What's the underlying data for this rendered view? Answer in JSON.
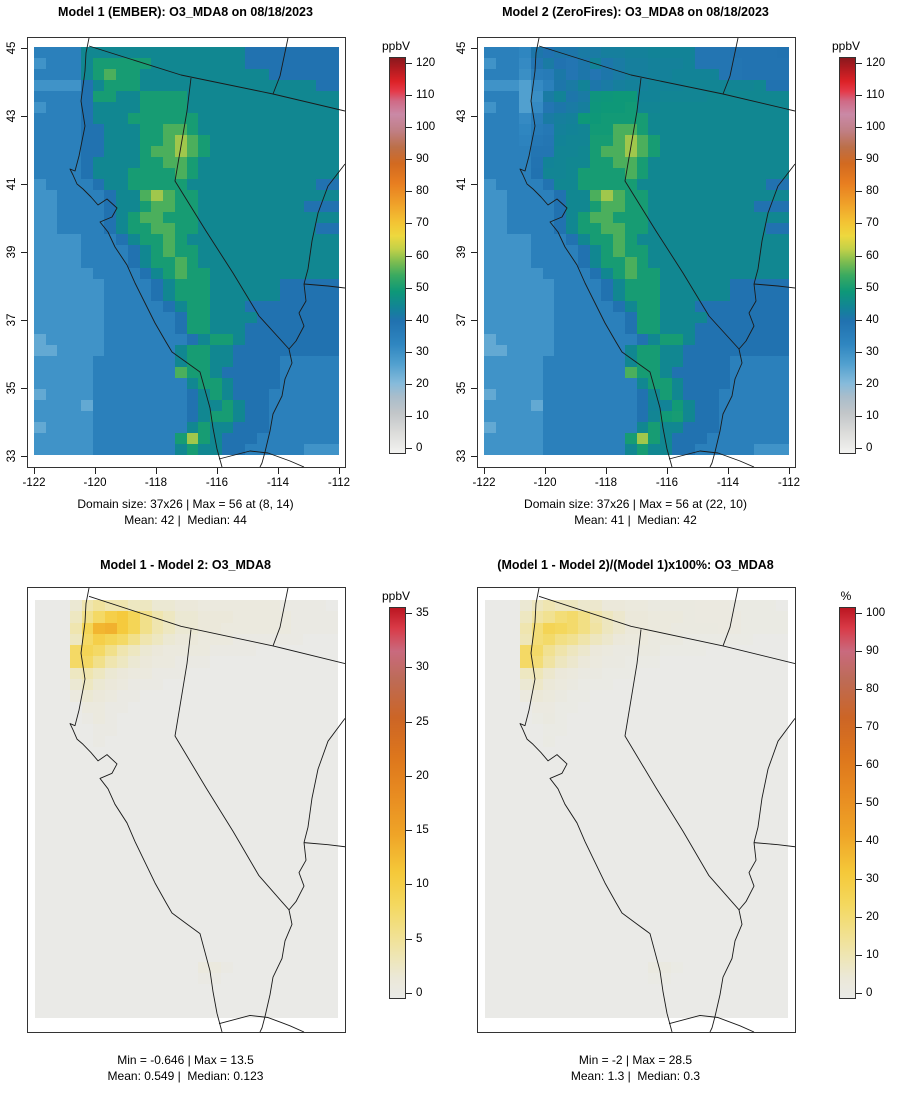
{
  "figure": {
    "background": "#ffffff",
    "description": "Four-panel model comparison of O3_MDA8 over California/Nevada"
  },
  "panels": [
    {
      "id": "model1",
      "title": "Model 1 (EMBER): O3_MDA8 on 08/18/2023",
      "stats1": "Domain size: 37x26 | Max = 56 at (8, 14)",
      "stats2": "Mean: 42 |  Median: 44",
      "x_ticks": [
        "-122",
        "-120",
        "-118",
        "-116",
        "-114",
        "-112"
      ],
      "y_ticks": [
        "45",
        "43",
        "41",
        "39",
        "37",
        "35",
        "33"
      ],
      "colorbar": {
        "unit": "ppbV",
        "max": 120,
        "ticks": [
          0,
          10,
          20,
          30,
          40,
          50,
          60,
          70,
          80,
          90,
          100,
          110,
          120
        ]
      }
    },
    {
      "id": "model2",
      "title": "Model 2 (ZeroFires): O3_MDA8 on 08/18/2023",
      "stats1": "Domain size: 37x26 | Max = 56 at (22, 10)",
      "stats2": "Mean: 41 |  Median: 42",
      "x_ticks": [
        "-122",
        "-120",
        "-118",
        "-116",
        "-114",
        "-112"
      ],
      "y_ticks": [
        "45",
        "43",
        "41",
        "39",
        "37",
        "35",
        "33"
      ],
      "colorbar": {
        "unit": "ppbV",
        "max": 120,
        "ticks": [
          0,
          10,
          20,
          30,
          40,
          50,
          60,
          70,
          80,
          90,
          100,
          110,
          120
        ]
      }
    },
    {
      "id": "diff",
      "title": "Model 1 - Model 2: O3_MDA8",
      "stats1": "Min = -0.646 | Max = 13.5",
      "stats2": "Mean: 0.549 |  Median: 0.123",
      "x_ticks": [],
      "y_ticks": [],
      "colorbar": {
        "unit": "ppbV",
        "max": 35,
        "ticks": [
          0,
          5,
          10,
          15,
          20,
          25,
          30,
          35
        ]
      }
    },
    {
      "id": "pctdiff",
      "title": "(Model 1 - Model 2)/(Model 1)x100%: O3_MDA8",
      "stats1": "Min = -2 | Max = 28.5",
      "stats2": "Mean: 1.3 |  Median: 0.3",
      "x_ticks": [],
      "y_ticks": [],
      "colorbar": {
        "unit": "%",
        "max": 100,
        "ticks": [
          0,
          10,
          20,
          30,
          40,
          50,
          60,
          70,
          80,
          90,
          100
        ]
      }
    }
  ],
  "chart_data": {
    "type": "heatmap",
    "variable": "O3_MDA8",
    "date": "08/18/2023",
    "grid": {
      "ncols": 26,
      "nrows": 37,
      "lon_range": [
        -122.3,
        -112.0
      ],
      "lat_range": [
        33,
        45
      ],
      "value_encoding": "each char base36 x 5 = ppbV (estimated from pixels)",
      "model1_ppbv_rows": [
        "77779999999999999988888888",
        "67779AAAAA9999999988888888",
        "77779ABAA99999999999888888",
        "666689AAA99999999999999988",
        "77778AA99AAAA9999999999999",
        "677789999AAAA9999999999999",
        "77778999AAAAAA999999999999",
        "777788999AABBA999999999999",
        "777788999AABCBA99999999999",
        "777788999ABBCBA99999999999",
        "777789999AABBA999999999999",
        "77778999AAAABA999999999999",
        "67777899AAAAA9999999999988",
        "667777899BCBAA999999999999",
        "667777899ABBAA999999999888",
        "66777789ABBAAA999999999999",
        "66777789AABBAA999999999988",
        "666677789AABA9999999999999",
        "6666777789ABAA999999999999",
        "6666777789AABA999999999999",
        "66666777789ABAA99999999999",
        "666666777789AAA99999988888",
        "666666777789AAA99999988888",
        "6666667777789AA99988888888",
        "6666667777778AA99998888888",
        "6666667777778AA99988888888",
        "566666777777789AA988888888",
        "5566667777779AA99888888888",
        "6666677777779AA99888877777",
        "666667777777BAA98888877777",
        "66666777777779AA9888877777",
        "566667777777789A9888777777",
        "6666577777777899A988777777",
        "666667777777789AA988777777",
        "56666777777779A99888777777",
        "666667777777ACA98887777777",
        "6666677777779A998877777666"
      ],
      "diff_encoding": "each char base36 x 0.5 = ppbV difference (Model1 - Model2)",
      "diff_rows": [
        "00048A88664433222222211110",
        "0006CGKMIC8644333222221111",
        "0008IQRMIC8644332222221111",
        "0006GKIGC86433222111111000",
        "000GIGC8643222211110000000",
        "000GGC86432211100000000000",
        "00068643221110000000000000",
        "00046432111000000000000000",
        "00024321100000000000000000",
        "00002211000000000000000000",
        "00001210000000000000000000",
        "00000110000000000000000000",
        "00000100000000000000000000",
        "00000000000000000000000000",
        "00000000000000000000000000",
        "00000000000000000000000000",
        "00000000000000000000000000",
        "00000000000000000000000000",
        "00000000000000000000000000",
        "00000000000000000000000000",
        "00000000000000000000000000",
        "00000000000000000000000000",
        "00000000000000000000000000",
        "00000000000000000000000000",
        "00000000000000000000000000",
        "00000000000000000000000000",
        "00000000000000000000000000",
        "00000000000000000000000000",
        "00000000000000000000000000",
        "00000000000000000000000000",
        "00000000000000000000000000",
        "00000000000000000000000000",
        "00000000000000221000000000",
        "00000000000000110000000000",
        "00000000000000000000000000",
        "00000000000000000000000000",
        "00000000000000000000000000"
      ],
      "model2_rule": "model2 = model1 - diff",
      "percent_rule": "percent = diff / model1 * 100"
    },
    "colormap_ppbv_stops": [
      [
        0,
        "#f2f2f0"
      ],
      [
        6,
        "#dcdcda"
      ],
      [
        12,
        "#c2c6c9"
      ],
      [
        17,
        "#a9bdcb"
      ],
      [
        21,
        "#86bbdb"
      ],
      [
        27,
        "#51a0cf"
      ],
      [
        33,
        "#2f86c0"
      ],
      [
        40,
        "#2172b0"
      ],
      [
        44,
        "#128397"
      ],
      [
        49,
        "#0e9878"
      ],
      [
        54,
        "#3aaa60"
      ],
      [
        58,
        "#7cbc50"
      ],
      [
        62,
        "#c3d148"
      ],
      [
        66,
        "#eed83e"
      ],
      [
        70,
        "#f3c434"
      ],
      [
        76,
        "#ef9f29"
      ],
      [
        82,
        "#e87e20"
      ],
      [
        88,
        "#d26a20"
      ],
      [
        93,
        "#bc6f49"
      ],
      [
        98,
        "#c07f85"
      ],
      [
        103,
        "#ca89a6"
      ],
      [
        107,
        "#d06a86"
      ],
      [
        110,
        "#e53a4a"
      ],
      [
        113,
        "#dc2227"
      ],
      [
        117,
        "#b01b20"
      ],
      [
        120,
        "#8c181d"
      ]
    ],
    "colormap_diff_stops": [
      [
        0,
        "#eaeae7"
      ],
      [
        0.05,
        "#ebe8d8"
      ],
      [
        0.1,
        "#eee6b8"
      ],
      [
        0.16,
        "#f1e191"
      ],
      [
        0.24,
        "#f4d85e"
      ],
      [
        0.32,
        "#f5c93a"
      ],
      [
        0.42,
        "#efa427"
      ],
      [
        0.52,
        "#e88c21"
      ],
      [
        0.62,
        "#dd761c"
      ],
      [
        0.72,
        "#cc6526"
      ],
      [
        0.82,
        "#bd6b58"
      ],
      [
        0.89,
        "#c96a7e"
      ],
      [
        0.95,
        "#d93a47"
      ],
      [
        1,
        "#bc1722"
      ]
    ],
    "map_outlines": [
      "M61,0 L58,15 57,33 53,63 57,88 51,118 47,133 42,131 45,137 49,146 55,151 63,159 70,167 79,161 89,170 84,179 72,184 80,194 87,209 99,227 107,245 118,267 127,285 138,304 144,314 158,324 172,334 177,352 182,370 185,390 189,411 194,429",
      "M61,8 L153,37 245,56 317,73",
      "M245,56 L252,38 260,0",
      "M317,126 L300,148 290,175 284,203 280,231 276,246",
      "M276,246 L300,248 317,250",
      "M276,246 L278,263 271,275 276,288 268,303 261,311 264,325 257,341 254,358 245,376 242,393 237,414 234,425 232,429",
      "M163,40 L159,73 153,108 147,143 178,193 205,235 231,278 261,311",
      "M191,421 L222,413 240,415 262,423 276,429"
    ],
    "layout_hints": {
      "grid_lines": false,
      "legend_position": "right colorbar per panel"
    }
  }
}
